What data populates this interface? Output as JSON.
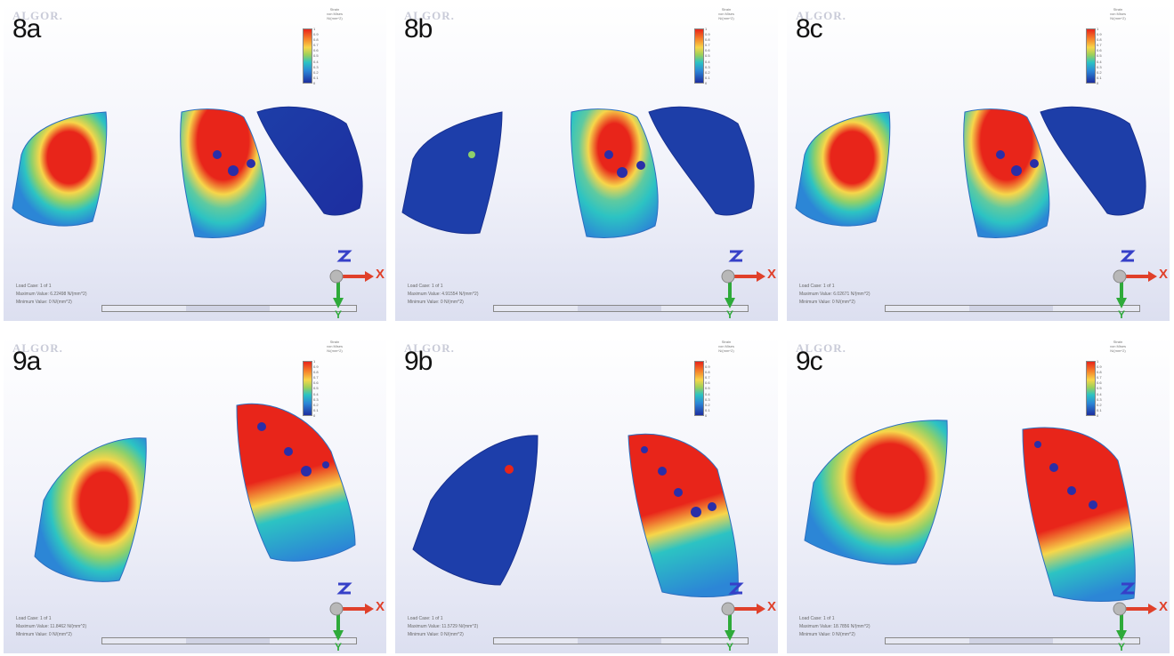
{
  "panels": [
    {
      "label": "8a",
      "watermark": "ALGOR.",
      "legend_title": "Strain\nvon Mises\nN/(mm^2)",
      "legend_ticks": [
        "1",
        "0.9",
        "0.8",
        "0.7",
        "0.6",
        "0.5",
        "0.4",
        "0.3",
        "0.2",
        "0.1",
        "0"
      ],
      "load_case": "Load Case: 1 of 1",
      "max_value": "Maximum Value: 6.22498 N/(mm^2)",
      "min_value": "Minimum Value: 0 N/(mm^2)",
      "ruler_ticks": [
        "0.000",
        "26.797",
        "mm",
        "80.634",
        "96.565"
      ],
      "axis_x": "X",
      "axis_y": "Y"
    },
    {
      "label": "8b",
      "watermark": "ALGOR.",
      "legend_title": "Strain\nvon Mises\nN/(mm^2)",
      "legend_ticks": [
        "1",
        "0.9",
        "0.8",
        "0.7",
        "0.6",
        "0.5",
        "0.4",
        "0.3",
        "0.2",
        "0.1",
        "0"
      ],
      "load_case": "Load Case: 1 of 1",
      "max_value": "Maximum Value: 4.91554 N/(mm^2)",
      "min_value": "Minimum Value: 0 N/(mm^2)",
      "ruler_ticks": [
        "0.000",
        "26.797",
        "mm",
        "80.634",
        "96.565"
      ],
      "axis_x": "X",
      "axis_y": "Y"
    },
    {
      "label": "8c",
      "watermark": "ALGOR.",
      "legend_title": "Strain\nvon Mises\nN/(mm^2)",
      "legend_ticks": [
        "1",
        "0.9",
        "0.8",
        "0.7",
        "0.6",
        "0.5",
        "0.4",
        "0.3",
        "0.2",
        "0.1",
        "0"
      ],
      "load_case": "Load Case: 1 of 1",
      "max_value": "Maximum Value: 6.02671 N/(mm^2)",
      "min_value": "Minimum Value: 0 N/(mm^2)",
      "ruler_ticks": [
        "0.000",
        "26.797",
        "mm",
        "80.634",
        "96.565"
      ],
      "axis_x": "X",
      "axis_y": "Y"
    },
    {
      "label": "9a",
      "watermark": "ALGOR.",
      "legend_title": "Strain\nvon Mises\nN/(mm^2)",
      "legend_ticks": [
        "1",
        "0.9",
        "0.8",
        "0.7",
        "0.6",
        "0.5",
        "0.4",
        "0.3",
        "0.2",
        "0.1",
        "0"
      ],
      "load_case": "Load Case: 1 of 1",
      "max_value": "Maximum Value: 11.8462 N/(mm^2)",
      "min_value": "Minimum Value: 0 N/(mm^2)",
      "ruler_ticks": [
        "0.000",
        "22.827",
        "mm",
        "80.423",
        "72.203"
      ],
      "axis_x": "X",
      "axis_y": "Y"
    },
    {
      "label": "9b",
      "watermark": "ALGOR.",
      "legend_title": "Strain\nvon Mises\nN/(mm^2)",
      "legend_ticks": [
        "1",
        "0.9",
        "0.8",
        "0.7",
        "0.6",
        "0.5",
        "0.4",
        "0.3",
        "0.2",
        "0.1",
        "0"
      ],
      "load_case": "Load Case: 1 of 1",
      "max_value": "Maximum Value: 11.5729 N/(mm^2)",
      "min_value": "Minimum Value: 0 N/(mm^2)",
      "ruler_ticks": [
        "0.000",
        "22.357",
        "mm",
        "48.476",
        "94.480"
      ],
      "axis_x": "X",
      "axis_y": "Y"
    },
    {
      "label": "9c",
      "watermark": "ALGOR.",
      "legend_title": "Strain\nvon Mises\nN/(mm^2)",
      "legend_ticks": [
        "1",
        "0.9",
        "0.8",
        "0.7",
        "0.6",
        "0.5",
        "0.4",
        "0.3",
        "0.2",
        "0.1",
        "0"
      ],
      "load_case": "Load Case: 1 of 1",
      "max_value": "Maximum Value: 18.7856 N/(mm^2)",
      "min_value": "Minimum Value: 0 N/(mm^2)",
      "ruler_ticks": [
        "0.000",
        "22.357",
        "mm",
        "48.476",
        "94.480"
      ],
      "axis_x": "X",
      "axis_y": "Y"
    }
  ],
  "colors": {
    "high": "#e8251a",
    "mid": "#f7d64a",
    "low_mid": "#2cc3c3",
    "low": "#1d2ea0",
    "axis_x": "#e0402a",
    "axis_y": "#2eaa3a",
    "axis_z": "#3640c8"
  },
  "icons": {
    "triad": "xyz-axis-triad-icon"
  }
}
